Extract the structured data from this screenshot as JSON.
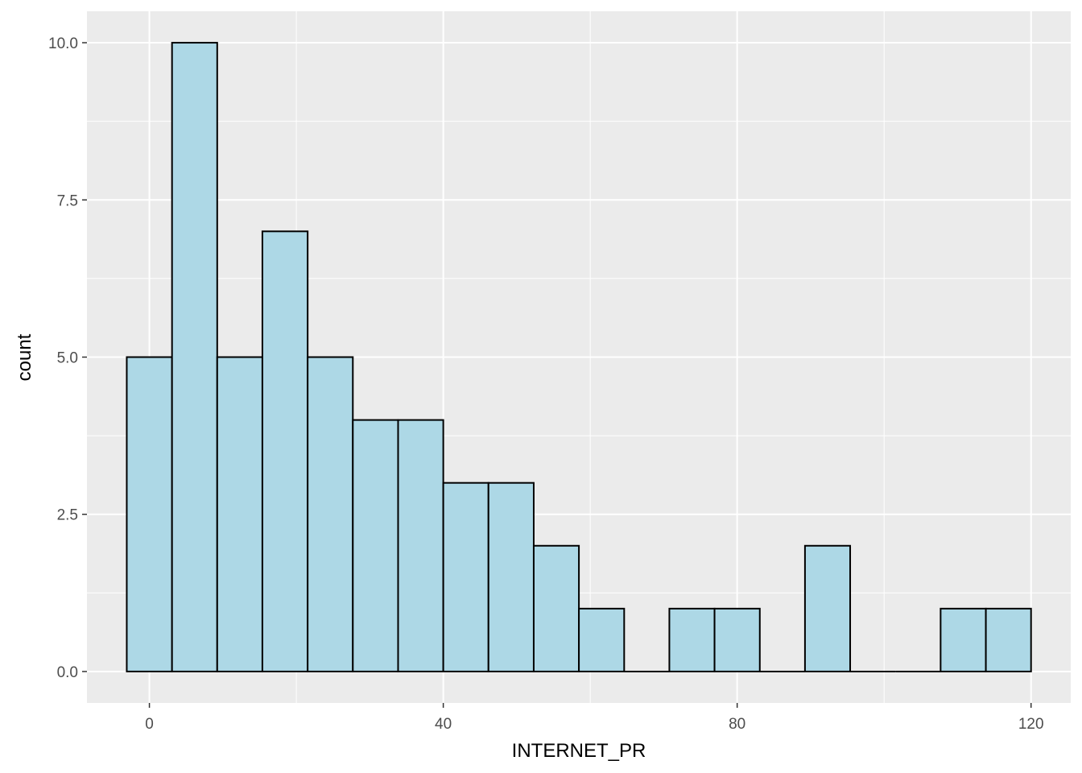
{
  "chart_data": {
    "type": "bar",
    "subtype": "histogram",
    "title": "",
    "xlabel": "INTERNET_PR",
    "ylabel": "count",
    "bin_width": 6.15,
    "bins": [
      {
        "x0": -3.08,
        "x1": 3.08,
        "count": 5
      },
      {
        "x0": 3.08,
        "x1": 9.23,
        "count": 10
      },
      {
        "x0": 9.23,
        "x1": 15.38,
        "count": 5
      },
      {
        "x0": 15.38,
        "x1": 21.54,
        "count": 7
      },
      {
        "x0": 21.54,
        "x1": 27.69,
        "count": 5
      },
      {
        "x0": 27.69,
        "x1": 33.85,
        "count": 4
      },
      {
        "x0": 33.85,
        "x1": 40.0,
        "count": 4
      },
      {
        "x0": 40.0,
        "x1": 46.15,
        "count": 3
      },
      {
        "x0": 46.15,
        "x1": 52.31,
        "count": 3
      },
      {
        "x0": 52.31,
        "x1": 58.46,
        "count": 2
      },
      {
        "x0": 58.46,
        "x1": 64.62,
        "count": 1
      },
      {
        "x0": 64.62,
        "x1": 70.77,
        "count": 0
      },
      {
        "x0": 70.77,
        "x1": 76.92,
        "count": 1
      },
      {
        "x0": 76.92,
        "x1": 83.08,
        "count": 1
      },
      {
        "x0": 83.08,
        "x1": 89.23,
        "count": 0
      },
      {
        "x0": 89.23,
        "x1": 95.38,
        "count": 2
      },
      {
        "x0": 95.38,
        "x1": 101.54,
        "count": 0
      },
      {
        "x0": 101.54,
        "x1": 107.69,
        "count": 0
      },
      {
        "x0": 107.69,
        "x1": 113.85,
        "count": 1
      },
      {
        "x0": 113.85,
        "x1": 120.0,
        "count": 1
      }
    ],
    "xlim": [
      -8.5,
      125.4
    ],
    "ylim": [
      -0.5,
      10.5
    ],
    "x_ticks": [
      0,
      40,
      80,
      120
    ],
    "x_tick_labels": [
      "0",
      "40",
      "80",
      "120"
    ],
    "y_ticks": [
      0,
      2.5,
      5,
      7.5,
      10
    ],
    "y_tick_labels": [
      "0.0",
      "2.5",
      "5.0",
      "7.5",
      "10.0"
    ],
    "x_minor_ticks": [
      20,
      60,
      100
    ],
    "y_minor_ticks": [
      1.25,
      3.75,
      6.25,
      8.75
    ],
    "grid": true,
    "legend": "none",
    "colors": {
      "bar_fill": "#add8e6",
      "bar_stroke": "#000000",
      "panel_background": "#ebebeb",
      "grid_line": "#ffffff",
      "tick_text": "#4d4d4d",
      "axis_title": "#000000"
    }
  }
}
